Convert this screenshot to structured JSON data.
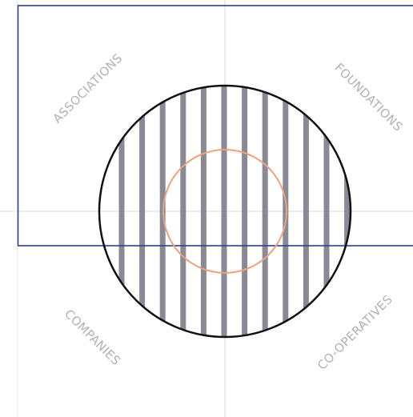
{
  "quadrant_labels": {
    "top_left": "ASSOCIATIONS",
    "top_right": "FOUNDATIONS",
    "bottom_left": "COMPANIES",
    "bottom_right": "CO-OPERATIVES"
  },
  "colors": {
    "background": "#ffffff",
    "axis_lines": "#d9d9d9",
    "rectangle_border": "#2d3e8c",
    "outer_circle": "#111111",
    "stripes": "#8a8a96",
    "inner_circle": "#f0a07c",
    "label_text": "#b2b2b2"
  },
  "stripe_count": 12
}
